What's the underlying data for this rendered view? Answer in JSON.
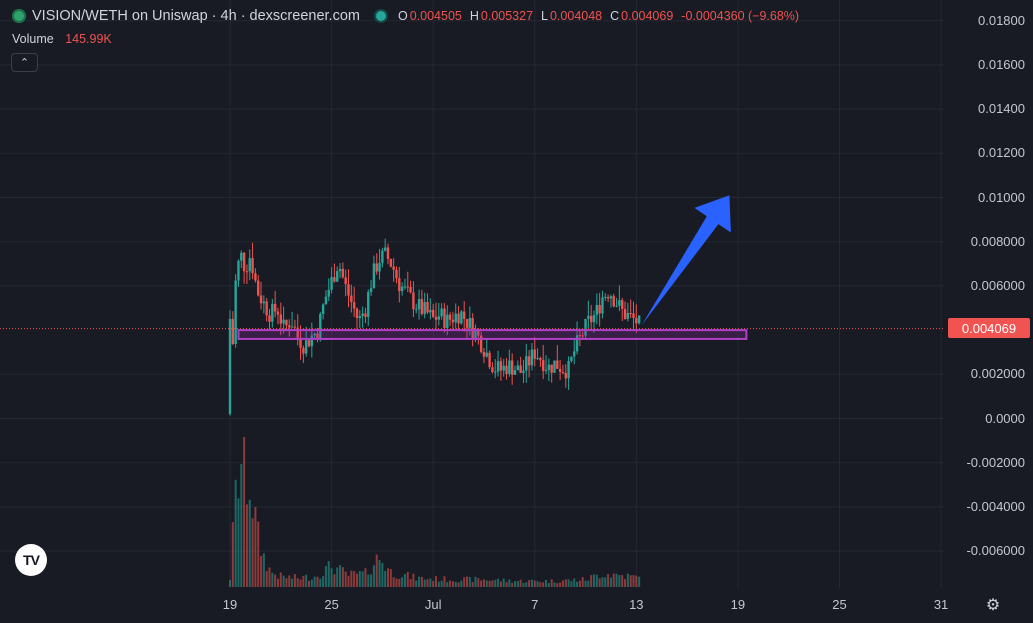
{
  "header": {
    "title": "VISION/WETH on Uniswap · 4h · dexscreener.com",
    "o_label": "O",
    "o_value": "0.004505",
    "h_label": "H",
    "h_value": "0.005327",
    "l_label": "L",
    "l_value": "0.004048",
    "c_label": "C",
    "c_value": "0.004069",
    "change": "-0.0004360 (−9.68%)"
  },
  "volume": {
    "label": "Volume",
    "value": "145.99K"
  },
  "current_price_tag": "0.004069",
  "icons": {
    "logo": "token-logo-icon",
    "status": "live-dot-icon",
    "collapse": "chevron-up-icon",
    "brand": "tradingview-icon",
    "settings": "gear-icon"
  },
  "colors": {
    "up": "#26a69a",
    "down": "#ef5350",
    "background": "#181b23",
    "support_box": "#9c27b0",
    "arrow": "#2962ff",
    "price_tag": "#f05350"
  },
  "chart_data": {
    "type": "candlestick",
    "title": "VISION/WETH on Uniswap · 4h · dexscreener.com",
    "ylim": [
      -0.0075,
      0.0195
    ],
    "y_ticks": [
      "0.01800",
      "0.01600",
      "0.01400",
      "0.01200",
      "0.01000",
      "0.008000",
      "0.006000",
      "0.004069",
      "0.002000",
      "0.0000",
      "-0.002000",
      "-0.004000",
      "-0.006000"
    ],
    "y_tick_values": [
      0.018,
      0.016,
      0.014,
      0.012,
      0.01,
      0.008,
      0.006,
      0.004069,
      0.002,
      0.0,
      -0.002,
      -0.004,
      -0.006
    ],
    "x_ticks": [
      "19",
      "25",
      "Jul",
      "7",
      "13",
      "19",
      "25",
      "31"
    ],
    "x_tick_days": [
      19,
      25,
      31,
      37,
      43,
      49,
      55,
      61
    ],
    "x_axis_note": "days counted from June 1 (Jul = 31 = July 1)",
    "grid": true,
    "current_price_line": 0.004069,
    "support_zone": {
      "x_start": 19.5,
      "x_end": 49.5,
      "y_low": 0.0036,
      "y_high": 0.004
    },
    "arrow": {
      "from": [
        43.3,
        0.0042
      ],
      "to": [
        48.5,
        0.0101
      ]
    },
    "price_keypoints": [
      [
        19.0,
        0.0002
      ],
      [
        19.3,
        0.006
      ],
      [
        19.6,
        0.0075
      ],
      [
        19.9,
        0.0068
      ],
      [
        20.2,
        0.0074
      ],
      [
        20.6,
        0.0058
      ],
      [
        21.0,
        0.0052
      ],
      [
        21.4,
        0.0047
      ],
      [
        21.8,
        0.005
      ],
      [
        22.2,
        0.004
      ],
      [
        22.6,
        0.0045
      ],
      [
        23.0,
        0.0037
      ],
      [
        23.4,
        0.0033
      ],
      [
        23.8,
        0.0037
      ],
      [
        24.2,
        0.004
      ],
      [
        24.6,
        0.0054
      ],
      [
        25.0,
        0.0062
      ],
      [
        25.4,
        0.0071
      ],
      [
        25.8,
        0.006
      ],
      [
        26.2,
        0.0052
      ],
      [
        26.6,
        0.0044
      ],
      [
        27.0,
        0.005
      ],
      [
        27.4,
        0.0064
      ],
      [
        27.8,
        0.0072
      ],
      [
        28.2,
        0.0074
      ],
      [
        28.6,
        0.0069
      ],
      [
        29.0,
        0.0061
      ],
      [
        29.4,
        0.0057
      ],
      [
        29.8,
        0.0053
      ],
      [
        30.2,
        0.005
      ],
      [
        30.6,
        0.0048
      ],
      [
        31.0,
        0.0045
      ],
      [
        31.4,
        0.0047
      ],
      [
        31.8,
        0.0044
      ],
      [
        32.2,
        0.0046
      ],
      [
        32.6,
        0.0048
      ],
      [
        33.0,
        0.0044
      ],
      [
        33.4,
        0.004
      ],
      [
        33.8,
        0.0035
      ],
      [
        34.2,
        0.0029
      ],
      [
        34.6,
        0.0023
      ],
      [
        35.0,
        0.0022
      ],
      [
        35.4,
        0.0024
      ],
      [
        35.8,
        0.0023
      ],
      [
        36.2,
        0.0021
      ],
      [
        36.6,
        0.0025
      ],
      [
        37.0,
        0.003
      ],
      [
        37.4,
        0.0027
      ],
      [
        37.8,
        0.0023
      ],
      [
        38.2,
        0.0025
      ],
      [
        38.6,
        0.0023
      ],
      [
        39.0,
        0.0022
      ],
      [
        39.4,
        0.0032
      ],
      [
        39.8,
        0.0038
      ],
      [
        40.2,
        0.0044
      ],
      [
        40.6,
        0.0047
      ],
      [
        41.0,
        0.0055
      ],
      [
        41.4,
        0.0058
      ],
      [
        41.8,
        0.0053
      ],
      [
        42.2,
        0.0048
      ],
      [
        42.6,
        0.0046
      ],
      [
        43.0,
        0.0044
      ],
      [
        43.3,
        0.0041
      ]
    ],
    "volume_keypoints": [
      [
        19.0,
        0.06
      ],
      [
        19.3,
        0.55
      ],
      [
        19.6,
        0.85
      ],
      [
        19.9,
        0.75
      ],
      [
        20.2,
        0.7
      ],
      [
        20.6,
        0.35
      ],
      [
        21.0,
        0.2
      ],
      [
        21.4,
        0.1
      ],
      [
        22.0,
        0.07
      ],
      [
        23.0,
        0.06
      ],
      [
        24.0,
        0.07
      ],
      [
        25.0,
        0.14
      ],
      [
        26.0,
        0.08
      ],
      [
        27.0,
        0.09
      ],
      [
        27.8,
        0.2
      ],
      [
        28.5,
        0.1
      ],
      [
        30.0,
        0.06
      ],
      [
        32.0,
        0.05
      ],
      [
        34.0,
        0.05
      ],
      [
        36.0,
        0.04
      ],
      [
        38.0,
        0.04
      ],
      [
        40.0,
        0.05
      ],
      [
        41.0,
        0.09
      ],
      [
        42.0,
        0.08
      ],
      [
        43.3,
        0.06
      ]
    ]
  }
}
